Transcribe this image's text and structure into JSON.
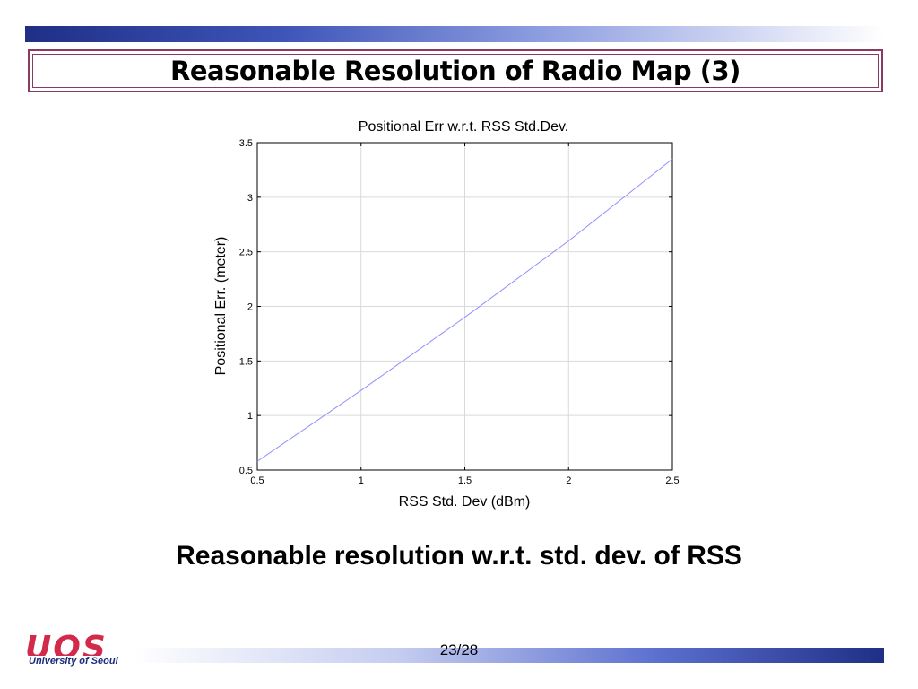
{
  "slide": {
    "title": "Reasonable Resolution of Radio Map (3)",
    "caption": "Reasonable resolution w.r.t. std. dev. of RSS",
    "page_number": "23/28",
    "logo_mark": "UOS",
    "logo_text": "University of Seoul"
  },
  "colors": {
    "title_border": "#8a3a62",
    "bar_dark": "#1f2f86",
    "series_line": "#8f8fff",
    "logo_red": "#d22a4a"
  },
  "chart_data": {
    "type": "line",
    "title": "Positional Err w.r.t. RSS Std.Dev.",
    "xlabel": "RSS Std. Dev (dBm)",
    "ylabel": "Positional Err. (meter)",
    "xlim": [
      0.5,
      2.5
    ],
    "ylim": [
      0.5,
      3.5
    ],
    "xticks": [
      0.5,
      1,
      1.5,
      2,
      2.5
    ],
    "yticks": [
      0.5,
      1,
      1.5,
      2,
      2.5,
      3,
      3.5
    ],
    "xtick_labels": [
      "0.5",
      "1",
      "1.5",
      "2",
      "2.5"
    ],
    "ytick_labels": [
      "0.5",
      "1",
      "1.5",
      "2",
      "2.5",
      "3",
      "3.5"
    ],
    "grid": true,
    "series": [
      {
        "x": [
          0.5,
          1.0,
          1.5,
          2.0,
          2.5
        ],
        "y": [
          0.58,
          1.23,
          1.9,
          2.6,
          3.35
        ]
      }
    ]
  }
}
